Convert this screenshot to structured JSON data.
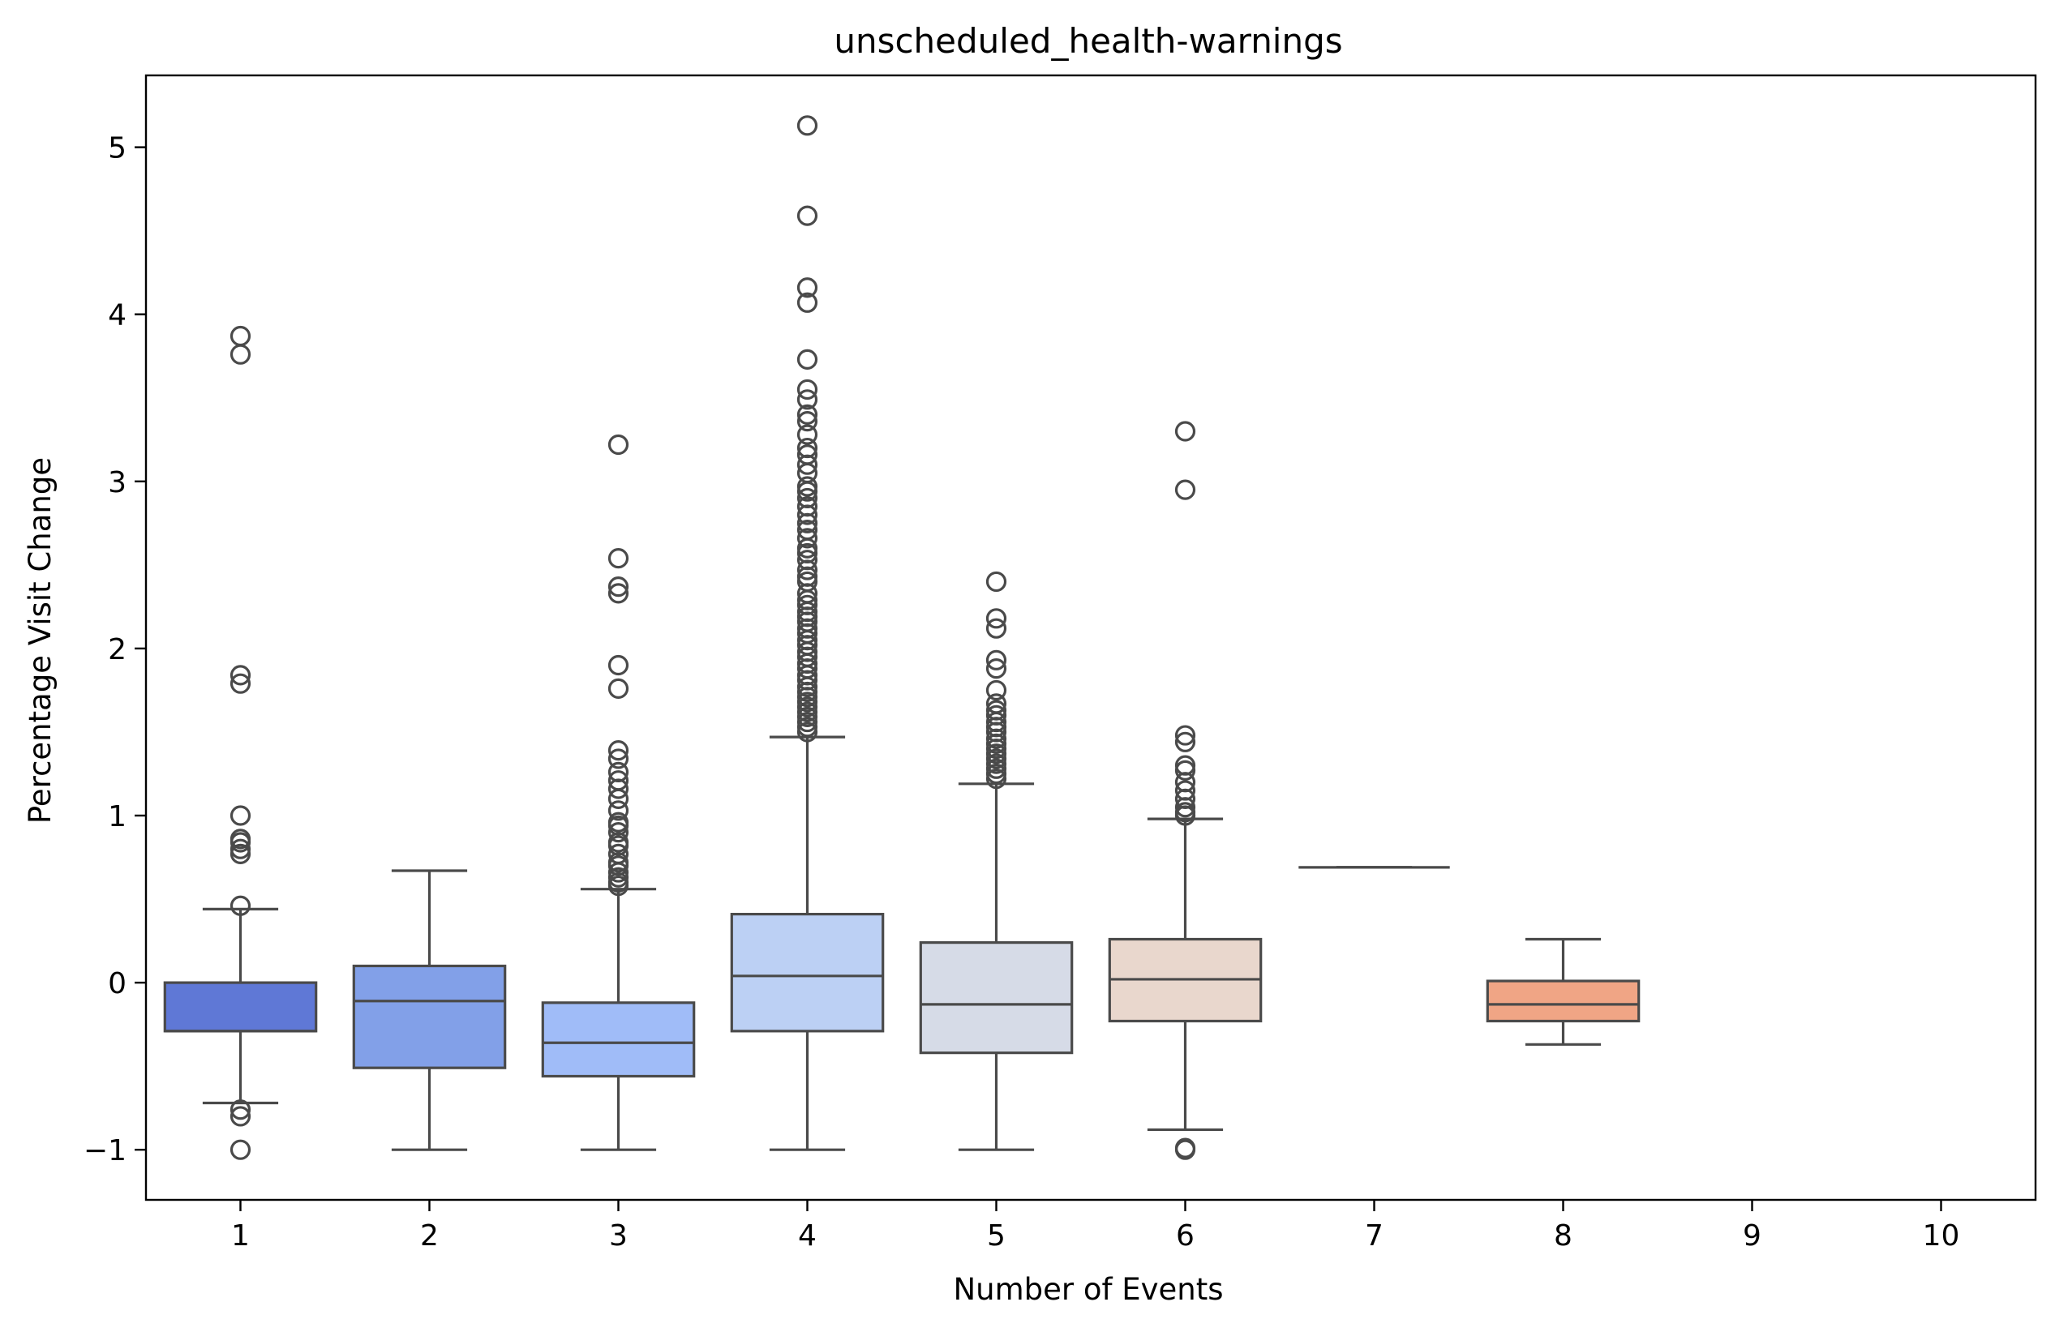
{
  "chart_data": {
    "type": "box",
    "title": "unscheduled_health-warnings",
    "xlabel": "Number of Events",
    "ylabel": "Percentage Visit Change",
    "categories": [
      "1",
      "2",
      "3",
      "4",
      "5",
      "6",
      "7",
      "8",
      "9",
      "10"
    ],
    "y_ticks": [
      -1,
      0,
      1,
      2,
      3,
      4,
      5
    ],
    "y_tick_labels": [
      "−1",
      "0",
      "1",
      "2",
      "3",
      "4",
      "5"
    ],
    "ylim": [
      -1.3,
      5.43
    ],
    "grid": false,
    "legend": "none",
    "colors": [
      "#5f78d6",
      "#82a0e8",
      "#a0bcf8",
      "#bcd0f4",
      "#d6dbe7",
      "#e9d7cd",
      "#f3c1a8",
      "#f0a585",
      "#e27e64",
      "#c44e4a"
    ],
    "edge_color": "#4a4a4a",
    "boxes": [
      {
        "category": "1",
        "whisker_low": -0.72,
        "q1": -0.29,
        "median": -0.29,
        "q3": 0.0,
        "whisker_high": 0.44,
        "outliers": [
          3.87,
          3.76,
          1.84,
          1.79,
          1.0,
          0.86,
          0.84,
          0.8,
          0.77,
          0.46,
          -0.76,
          -0.8,
          -1.0
        ]
      },
      {
        "category": "2",
        "whisker_low": -1.0,
        "q1": -0.51,
        "median": -0.11,
        "q3": 0.1,
        "whisker_high": 0.67,
        "outliers": []
      },
      {
        "category": "3",
        "whisker_low": -1.0,
        "q1": -0.56,
        "median": -0.36,
        "q3": -0.12,
        "whisker_high": 0.56,
        "outliers": [
          3.22,
          2.54,
          2.37,
          2.33,
          1.9,
          1.76,
          1.39,
          1.34,
          1.26,
          1.21,
          1.16,
          1.1,
          1.03,
          0.96,
          0.94,
          0.9,
          0.84,
          0.82,
          0.77,
          0.72,
          0.7,
          0.66,
          0.63,
          0.6,
          0.58
        ]
      },
      {
        "category": "4",
        "whisker_low": -1.0,
        "q1": -0.29,
        "median": 0.04,
        "q3": 0.41,
        "whisker_high": 1.47,
        "outliers": [
          5.13,
          4.59,
          4.16,
          4.07,
          3.73,
          3.55,
          3.49,
          3.4,
          3.36,
          3.28,
          3.2,
          3.16,
          3.1,
          3.05,
          2.97,
          2.94,
          2.9,
          2.85,
          2.8,
          2.75,
          2.71,
          2.66,
          2.6,
          2.57,
          2.53,
          2.47,
          2.43,
          2.4,
          2.33,
          2.29,
          2.26,
          2.22,
          2.19,
          2.16,
          2.12,
          2.09,
          2.05,
          2.02,
          1.98,
          1.95,
          1.91,
          1.88,
          1.84,
          1.81,
          1.77,
          1.74,
          1.71,
          1.68,
          1.65,
          1.62,
          1.59,
          1.56,
          1.53,
          1.5
        ]
      },
      {
        "category": "5",
        "whisker_low": -1.0,
        "q1": -0.42,
        "median": -0.13,
        "q3": 0.24,
        "whisker_high": 1.19,
        "outliers": [
          2.4,
          2.18,
          2.12,
          1.93,
          1.88,
          1.75,
          1.67,
          1.63,
          1.6,
          1.56,
          1.53,
          1.5,
          1.46,
          1.43,
          1.4,
          1.37,
          1.34,
          1.31,
          1.28,
          1.25,
          1.22
        ]
      },
      {
        "category": "6",
        "whisker_low": -0.88,
        "q1": -0.23,
        "median": 0.02,
        "q3": 0.26,
        "whisker_high": 0.98,
        "outliers": [
          3.3,
          2.95,
          1.48,
          1.44,
          1.3,
          1.27,
          1.2,
          1.15,
          1.1,
          1.05,
          1.02,
          1.0,
          -0.99,
          -1.0
        ]
      },
      {
        "category": "7",
        "whisker_low": 0.69,
        "q1": 0.69,
        "median": 0.69,
        "q3": 0.69,
        "whisker_high": 0.69,
        "outliers": []
      },
      {
        "category": "8",
        "whisker_low": -0.37,
        "q1": -0.23,
        "median": -0.13,
        "q3": 0.01,
        "whisker_high": 0.26,
        "outliers": []
      }
    ]
  }
}
